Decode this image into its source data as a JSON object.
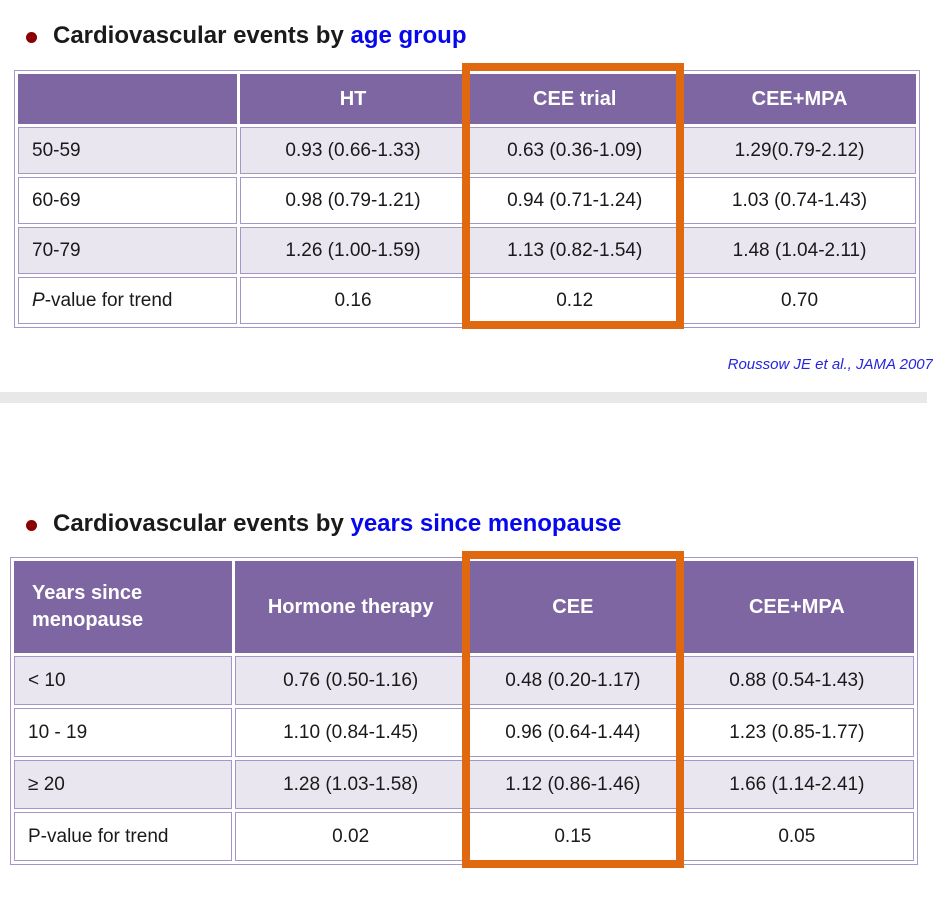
{
  "colors": {
    "header_purple": "#7E66A2",
    "row_lavender": "#E9E6F0",
    "cell_border_purple": "#A496C6",
    "highlight_orange": "#E0690F",
    "title_highlight_blue": "#0707EE",
    "bullet_dark_red": "#8B0000",
    "citation_blue": "#2525DD",
    "divider_gray": "#E8E8E8"
  },
  "section_age": {
    "title_prefix": "Cardiovascular events by",
    "title_highlight": "age group",
    "table": {
      "columns": [
        "",
        "HT",
        "CEE trial",
        "CEE+MPA"
      ],
      "highlighted_column": "CEE trial",
      "rows": [
        {
          "label": "50-59",
          "p_italic": false,
          "shaded": true,
          "values": [
            "0.93 (0.66-1.33)",
            "0.63 (0.36-1.09)",
            "1.29(0.79-2.12)"
          ]
        },
        {
          "label": "60-69",
          "p_italic": false,
          "shaded": false,
          "values": [
            "0.98 (0.79-1.21)",
            "0.94 (0.71-1.24)",
            "1.03 (0.74-1.43)"
          ]
        },
        {
          "label": "70-79",
          "p_italic": false,
          "shaded": true,
          "values": [
            "1.26 (1.00-1.59)",
            "1.13 (0.82-1.54)",
            "1.48 (1.04-2.11)"
          ]
        },
        {
          "label": "P-value for trend",
          "p_italic": true,
          "shaded": false,
          "values": [
            "0.16",
            "0.12",
            "0.70"
          ]
        }
      ]
    },
    "citation": "Roussow JE et al., JAMA 2007"
  },
  "section_menopause": {
    "title_prefix": "Cardiovascular events by",
    "title_highlight": "years since menopause",
    "table": {
      "columns": [
        "Years since\nmenopause",
        "Hormone therapy",
        "CEE",
        "CEE+MPA"
      ],
      "highlighted_column": "CEE",
      "rows": [
        {
          "label": "< 10",
          "p_italic": false,
          "shaded": true,
          "values": [
            "0.76 (0.50-1.16)",
            "0.48 (0.20-1.17)",
            "0.88 (0.54-1.43)"
          ]
        },
        {
          "label": "10 - 19",
          "p_italic": false,
          "shaded": false,
          "values": [
            "1.10 (0.84-1.45)",
            "0.96 (0.64-1.44)",
            "1.23 (0.85-1.77)"
          ]
        },
        {
          "label": "≥ 20",
          "p_italic": false,
          "shaded": true,
          "values": [
            "1.28 (1.03-1.58)",
            "1.12 (0.86-1.46)",
            "1.66 (1.14-2.41)"
          ]
        },
        {
          "label": "P-value for trend",
          "p_italic": false,
          "shaded": false,
          "values": [
            "0.02",
            "0.15",
            "0.05"
          ]
        }
      ]
    }
  }
}
